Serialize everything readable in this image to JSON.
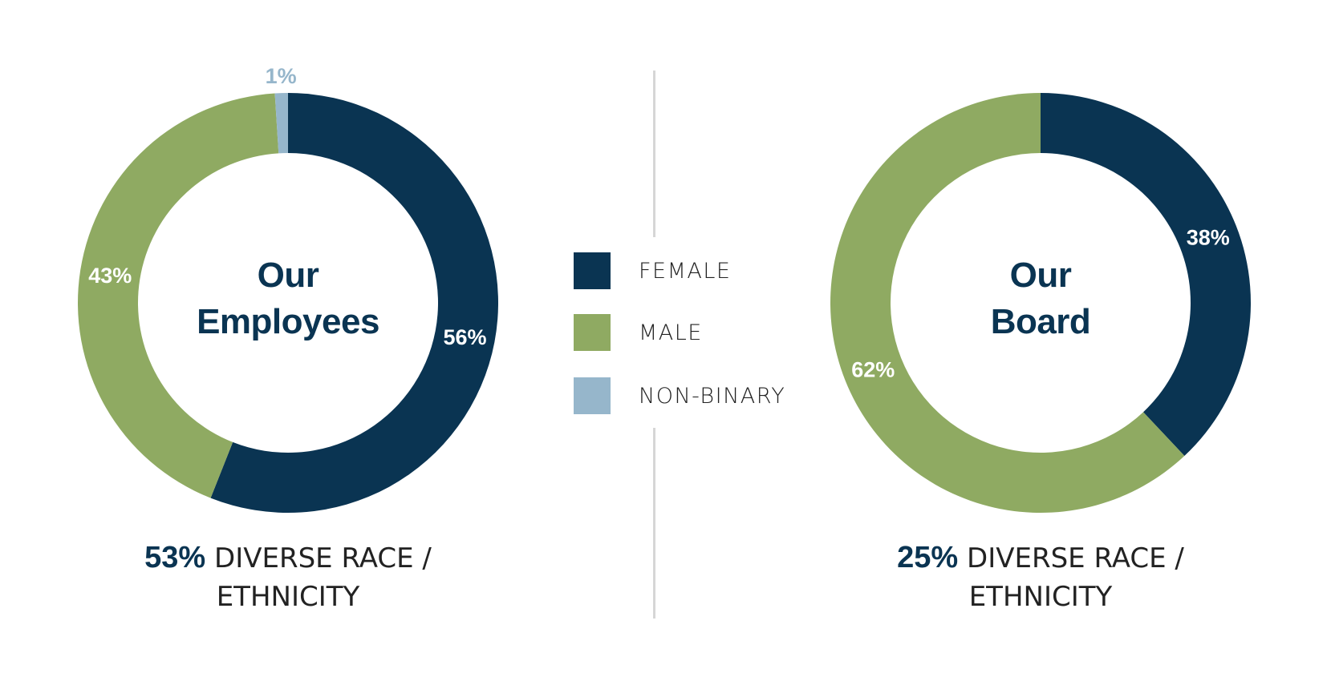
{
  "chart_data": [
    {
      "type": "pie",
      "donut": true,
      "title": "Our Employees",
      "categories": [
        "FEMALE",
        "MALE",
        "NON-BINARY"
      ],
      "values": [
        56,
        43,
        1
      ],
      "labels": [
        "56%",
        "43%",
        "1%"
      ],
      "footer": {
        "value": "53%",
        "text": "DIVERSE RACE /",
        "text2": "ETHNICITY"
      }
    },
    {
      "type": "pie",
      "donut": true,
      "title": "Our Board",
      "categories": [
        "FEMALE",
        "MALE"
      ],
      "values": [
        38,
        62
      ],
      "labels": [
        "38%",
        "62%"
      ],
      "footer": {
        "value": "25%",
        "text": "DIVERSE RACE /",
        "text2": "ETHNICITY"
      }
    }
  ],
  "titles": {
    "employees": {
      "line1": "Our",
      "line2": "Employees"
    },
    "board": {
      "line1": "Our",
      "line2": "Board"
    }
  },
  "legend": {
    "position": "center",
    "items": [
      {
        "label": "FEMALE",
        "color": "#0a3452"
      },
      {
        "label": "MALE",
        "color": "#8faa62"
      },
      {
        "label": "NON-BINARY",
        "color": "#96b6cb"
      }
    ]
  }
}
